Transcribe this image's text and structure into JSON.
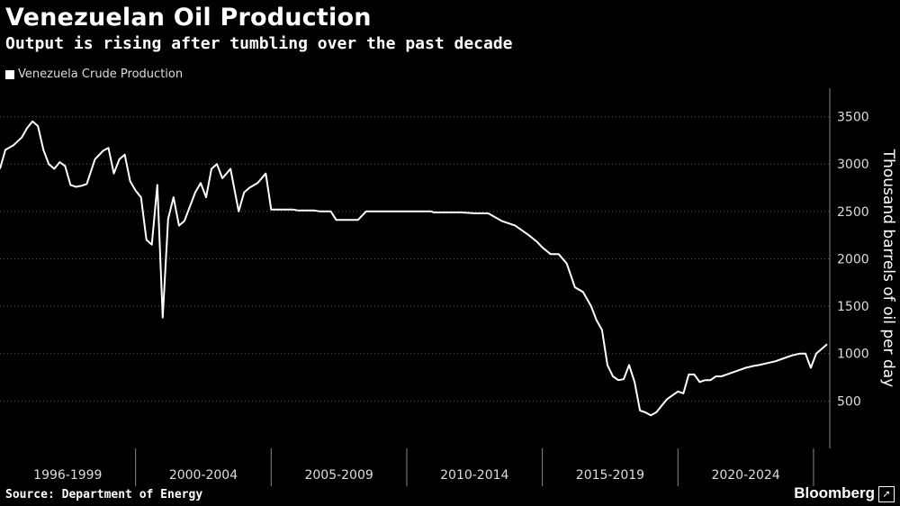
{
  "header": {
    "title": "Venezuelan Oil Production",
    "subtitle": "Output is rising after tumbling over the past decade"
  },
  "footer": {
    "source": "Source: Department of Energy",
    "brand": "Bloomberg",
    "brand_mark": "➚"
  },
  "colors": {
    "background": "#000000",
    "line": "#ffffff",
    "grid": "#555555"
  },
  "chart_data": {
    "type": "line",
    "title": "Venezuelan Oil Production",
    "subtitle": "Output is rising after tumbling over the past decade",
    "xlabel": "",
    "ylabel": "Thousand barrels of oil per day",
    "ylim": [
      0,
      3800
    ],
    "xlim": [
      1996,
      2026.6
    ],
    "y_ticks": [
      500,
      1000,
      1500,
      2000,
      2500,
      3000,
      3500
    ],
    "y_axis_side": "right",
    "grid": true,
    "legend": "top-left",
    "x_bands": [
      {
        "label": "1996-1999",
        "start": 1996,
        "end": 2001
      },
      {
        "label": "2000-2004",
        "start": 2001,
        "end": 2006
      },
      {
        "label": "2005-2009",
        "start": 2006,
        "end": 2011
      },
      {
        "label": "2010-2014",
        "start": 2011,
        "end": 2016
      },
      {
        "label": "2015-2019",
        "start": 2016,
        "end": 2021
      },
      {
        "label": "2020-2024",
        "start": 2021,
        "end": 2026
      }
    ],
    "series": [
      {
        "name": "Venezuela Crude Production",
        "x": [
          1996.0,
          1996.2,
          1996.5,
          1996.8,
          1997.0,
          1997.2,
          1997.4,
          1997.6,
          1997.8,
          1998.0,
          1998.2,
          1998.4,
          1998.6,
          1998.8,
          1999.0,
          1999.2,
          1999.5,
          1999.8,
          2000.0,
          2000.2,
          2000.4,
          2000.6,
          2000.8,
          2001.0,
          2001.2,
          2001.4,
          2001.6,
          2001.8,
          2002.0,
          2002.2,
          2002.4,
          2002.6,
          2002.8,
          2003.0,
          2003.2,
          2003.4,
          2003.6,
          2003.8,
          2004.0,
          2004.2,
          2004.5,
          2004.8,
          2005.0,
          2005.2,
          2005.5,
          2005.8,
          2006.0,
          2006.2,
          2006.4,
          2006.6,
          2006.8,
          2007.0,
          2007.2,
          2007.4,
          2007.6,
          2007.8,
          2008.0,
          2008.2,
          2008.4,
          2008.6,
          2008.8,
          2009.0,
          2009.2,
          2009.5,
          2009.8,
          2010.0,
          2010.2,
          2010.4,
          2010.6,
          2010.8,
          2011.0,
          2011.3,
          2011.6,
          2011.9,
          2012.0,
          2012.5,
          2013.0,
          2013.5,
          2014.0,
          2014.5,
          2015.0,
          2015.5,
          2015.8,
          2016.0,
          2016.3,
          2016.6,
          2016.9,
          2017.2,
          2017.5,
          2017.8,
          2018.0,
          2018.2,
          2018.4,
          2018.6,
          2018.8,
          2019.0,
          2019.2,
          2019.4,
          2019.6,
          2019.8,
          2020.0,
          2020.2,
          2020.4,
          2020.6,
          2020.8,
          2021.0,
          2021.2,
          2021.4,
          2021.6,
          2021.8,
          2022.0,
          2022.2,
          2022.4,
          2022.6,
          2022.8,
          2023.0,
          2023.2,
          2023.5,
          2023.8,
          2024.0,
          2024.3,
          2024.6,
          2024.9,
          2025.2,
          2025.5,
          2025.7,
          2025.9,
          2026.1,
          2026.3,
          2026.5
        ],
        "y": [
          2950,
          3150,
          3200,
          3280,
          3380,
          3450,
          3400,
          3150,
          3000,
          2950,
          3020,
          2980,
          2780,
          2760,
          2770,
          2790,
          3050,
          3140,
          3170,
          2900,
          3050,
          3100,
          2820,
          2720,
          2650,
          2200,
          2150,
          2780,
          1380,
          2420,
          2650,
          2350,
          2400,
          2550,
          2700,
          2800,
          2650,
          2950,
          3000,
          2850,
          2950,
          2500,
          2700,
          2750,
          2800,
          2900,
          2520,
          2520,
          2520,
          2520,
          2520,
          2510,
          2510,
          2510,
          2510,
          2500,
          2500,
          2500,
          2410,
          2410,
          2410,
          2410,
          2410,
          2500,
          2500,
          2500,
          2500,
          2500,
          2500,
          2500,
          2500,
          2500,
          2500,
          2500,
          2490,
          2490,
          2490,
          2480,
          2480,
          2400,
          2350,
          2250,
          2180,
          2120,
          2050,
          2050,
          1950,
          1700,
          1650,
          1500,
          1350,
          1250,
          880,
          760,
          720,
          730,
          880,
          700,
          400,
          380,
          350,
          380,
          450,
          520,
          560,
          600,
          580,
          780,
          780,
          700,
          720,
          720,
          760,
          760,
          780,
          800,
          820,
          850,
          870,
          880,
          900,
          920,
          950,
          980,
          1000,
          1000,
          850,
          1000,
          1050,
          1100
        ]
      }
    ]
  }
}
